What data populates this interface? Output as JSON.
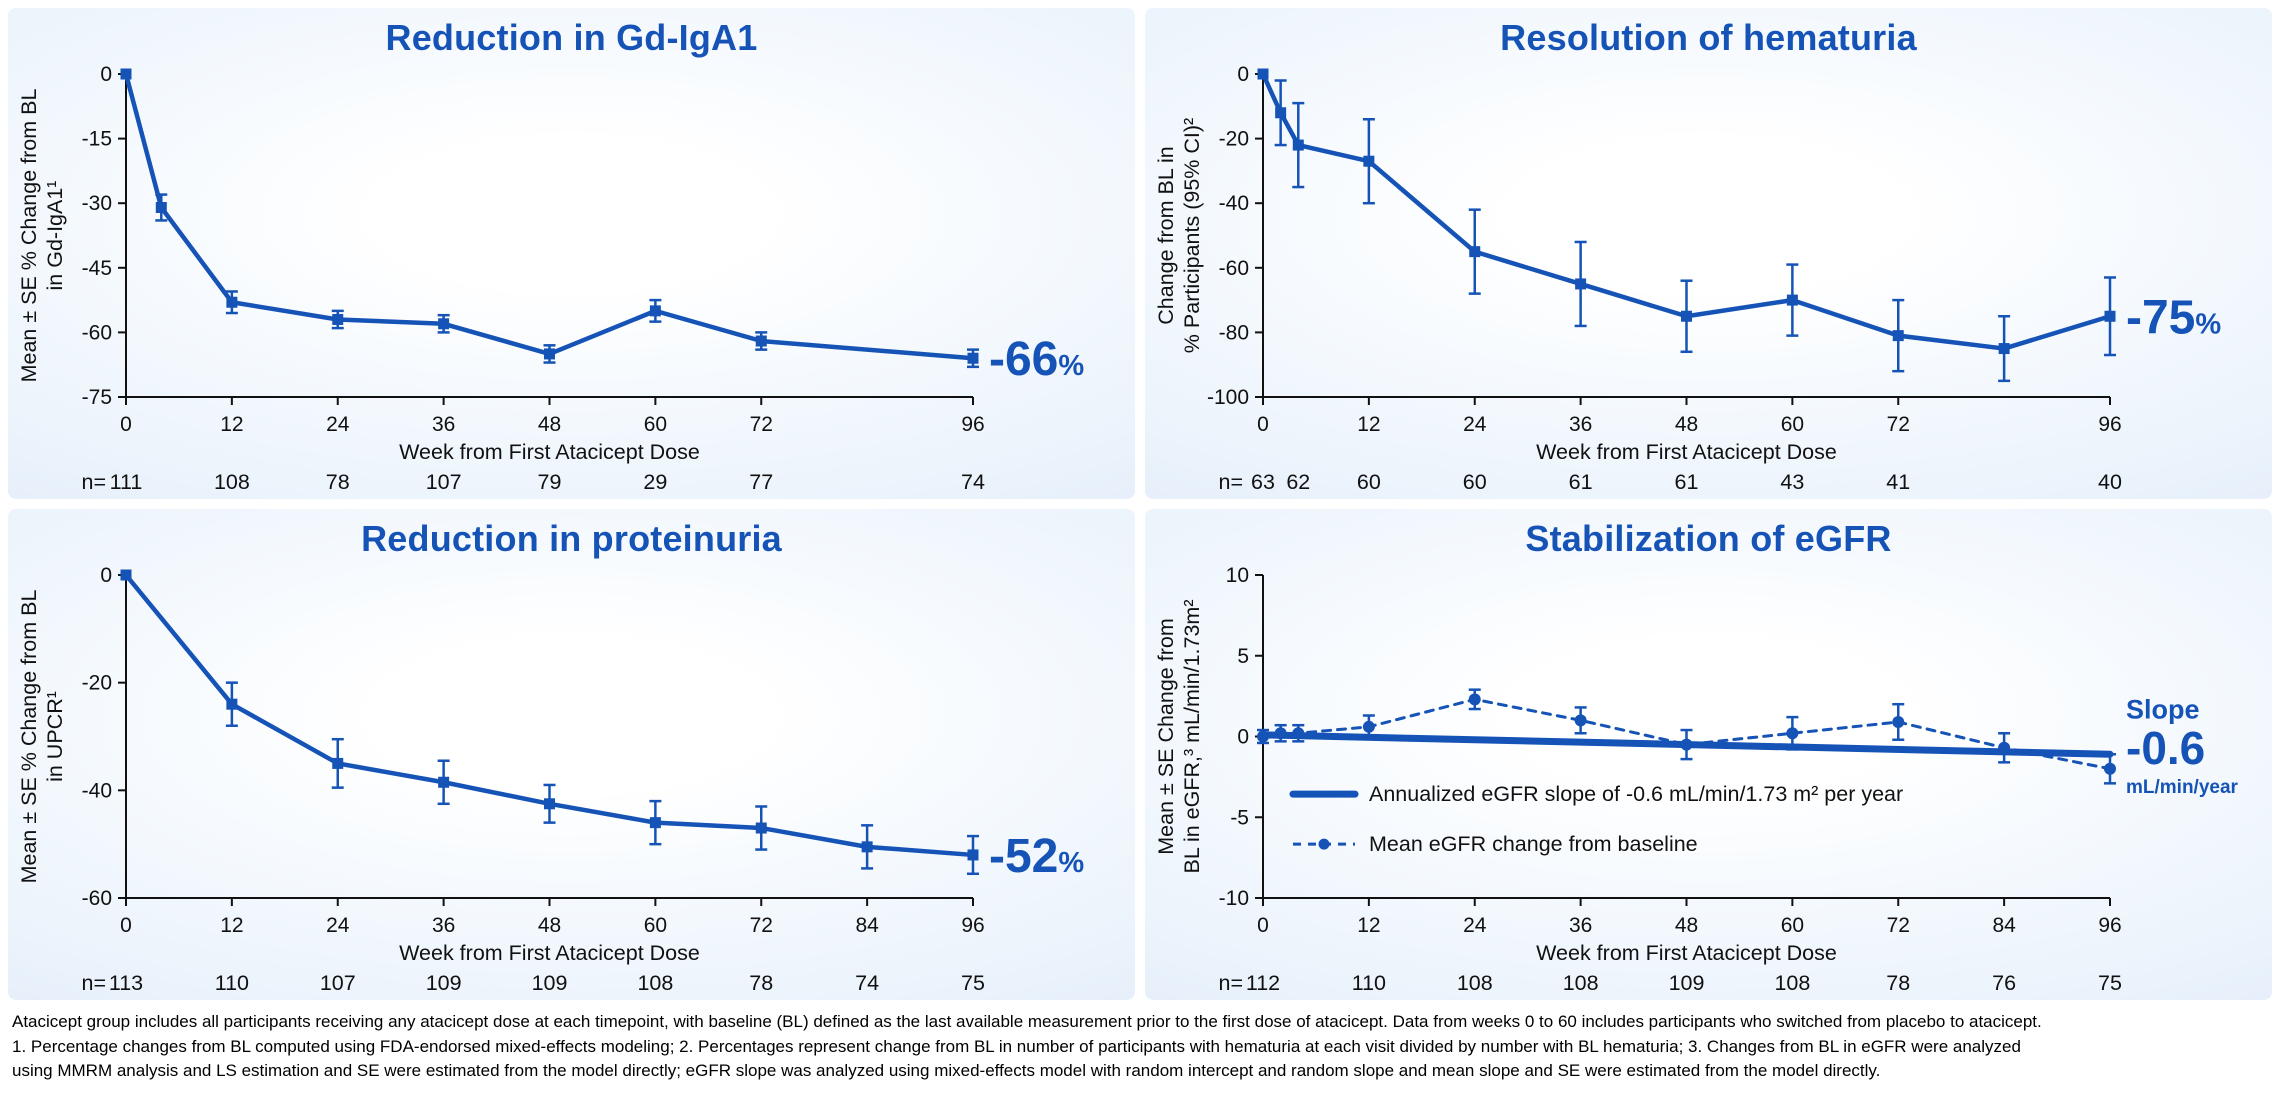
{
  "colors": {
    "accent": "#1553b6",
    "axis": "#111111",
    "text": "#111111",
    "panel_bg": "#e2edf9"
  },
  "footer": {
    "lines": [
      "Atacicept group includes all participants receiving any atacicept dose at each timepoint, with baseline (BL) defined as the last available measurement prior to the first dose of atacicept. Data from weeks 0 to 60 includes participants who switched from placebo to atacicept.",
      "1. Percentage changes from BL computed using FDA-endorsed mixed-effects modeling; 2. Percentages represent change from BL in number of participants with hematuria at each visit divided by number with BL hematuria; 3. Changes from BL in eGFR were analyzed",
      "using MMRM analysis and LS estimation and SE were estimated from the model directly; eGFR slope was analyzed using mixed-effects model with random intercept and random slope and mean slope and SE were estimated from the model directly."
    ]
  },
  "chart_data": [
    {
      "type": "line",
      "title": "Reduction in Gd-IgA1",
      "xlabel": "Week from First Atacicept Dose",
      "ylabel_lines": [
        "Mean ± SE % Change from BL",
        "in Gd-IgA1¹"
      ],
      "xlim": [
        0,
        96
      ],
      "ylim": [
        -75,
        0
      ],
      "yticks": [
        0,
        -15,
        -30,
        -45,
        -60,
        -75
      ],
      "xticks": [
        0,
        12,
        24,
        36,
        48,
        60,
        72,
        96
      ],
      "series": [
        {
          "name": "Mean % change from BL in Gd-IgA1",
          "style": "solid",
          "marker": "square",
          "x": [
            0,
            4,
            12,
            24,
            36,
            48,
            60,
            72,
            96
          ],
          "y": [
            0,
            -31,
            -53,
            -57,
            -58,
            -65,
            -55,
            -62,
            -66
          ],
          "err": [
            0,
            3,
            2.5,
            2,
            2,
            2,
            2.5,
            2,
            2
          ]
        }
      ],
      "annotation": {
        "value": "-66",
        "unit": "%"
      },
      "n_row": {
        "label": "n=",
        "weeks": [
          0,
          12,
          24,
          36,
          48,
          60,
          72,
          96
        ],
        "values": [
          "111",
          "108",
          "78",
          "107",
          "79",
          "29",
          "77",
          "74"
        ]
      }
    },
    {
      "type": "line",
      "title": "Resolution of hematuria",
      "xlabel": "Week from First Atacicept Dose",
      "ylabel_lines": [
        "Change from BL in",
        "% Participants (95% CI)²"
      ],
      "xlim": [
        0,
        96
      ],
      "ylim": [
        -100,
        0
      ],
      "yticks": [
        0,
        -20,
        -40,
        -60,
        -80,
        -100
      ],
      "xticks": [
        0,
        12,
        24,
        36,
        48,
        60,
        72,
        96
      ],
      "series": [
        {
          "name": "Change from BL in % participants with hematuria",
          "style": "solid",
          "marker": "square",
          "x": [
            0,
            2,
            4,
            12,
            24,
            36,
            48,
            60,
            72,
            84,
            96
          ],
          "y": [
            0,
            -12,
            -22,
            -27,
            -55,
            -65,
            -75,
            -70,
            -81,
            -85,
            -75
          ],
          "err": [
            0,
            10,
            13,
            13,
            13,
            13,
            11,
            11,
            11,
            10,
            12
          ]
        }
      ],
      "annotation": {
        "value": "-75",
        "unit": "%"
      },
      "n_row": {
        "label": "n=",
        "weeks": [
          0,
          4,
          12,
          24,
          36,
          48,
          60,
          72,
          96
        ],
        "values": [
          "63",
          "62",
          "60",
          "60",
          "61",
          "61",
          "43",
          "41",
          "40"
        ]
      }
    },
    {
      "type": "line",
      "title": "Reduction in proteinuria",
      "xlabel": "Week from First Atacicept Dose",
      "ylabel_lines": [
        "Mean ± SE % Change from BL",
        "in UPCR¹"
      ],
      "xlim": [
        0,
        96
      ],
      "ylim": [
        -60,
        0
      ],
      "yticks": [
        0,
        -20,
        -40,
        -60
      ],
      "xticks": [
        0,
        12,
        24,
        36,
        48,
        60,
        72,
        84,
        96
      ],
      "series": [
        {
          "name": "Mean % change from BL in UPCR",
          "style": "solid",
          "marker": "square",
          "x": [
            0,
            12,
            24,
            36,
            48,
            60,
            72,
            84,
            96
          ],
          "y": [
            0,
            -24,
            -35,
            -38.5,
            -42.5,
            -46,
            -47,
            -50.5,
            -52
          ],
          "err": [
            0,
            4,
            4.5,
            4,
            3.5,
            4,
            4,
            4,
            3.5
          ]
        }
      ],
      "annotation": {
        "value": "-52",
        "unit": "%"
      },
      "n_row": {
        "label": "n=",
        "weeks": [
          0,
          12,
          24,
          36,
          48,
          60,
          72,
          84,
          96
        ],
        "values": [
          "113",
          "110",
          "107",
          "109",
          "109",
          "108",
          "78",
          "74",
          "75"
        ]
      }
    },
    {
      "type": "line",
      "title": "Stabilization of eGFR",
      "xlabel": "Week from First Atacicept Dose",
      "ylabel_lines": [
        "Mean ± SE Change from",
        "BL in eGFR,³ mL/min/1.73m²"
      ],
      "xlim": [
        0,
        96
      ],
      "ylim": [
        -10,
        10
      ],
      "yticks": [
        10,
        5,
        0,
        -5,
        -10
      ],
      "xticks": [
        0,
        12,
        24,
        36,
        48,
        60,
        72,
        84,
        96
      ],
      "series": [
        {
          "name": "Annualized eGFR slope of -0.6 mL/min/1.73 m² per year",
          "style": "trend",
          "x": [
            0,
            96
          ],
          "y": [
            0.1,
            -1.1
          ]
        },
        {
          "name": "Mean eGFR change from baseline",
          "style": "dashed",
          "marker": "circle",
          "x": [
            0,
            2,
            4,
            12,
            24,
            36,
            48,
            60,
            72,
            84,
            96
          ],
          "y": [
            0,
            0.2,
            0.2,
            0.6,
            2.3,
            1.0,
            -0.5,
            0.2,
            0.9,
            -0.7,
            -2.0
          ],
          "err": [
            0.4,
            0.5,
            0.5,
            0.7,
            0.6,
            0.8,
            0.9,
            1.0,
            1.1,
            0.9,
            0.9
          ]
        }
      ],
      "legend": [
        {
          "style": "trend",
          "label": "Annualized eGFR slope of -0.6 mL/min/1.73 m² per year"
        },
        {
          "style": "dashed",
          "label": "Mean eGFR change from baseline"
        }
      ],
      "slope_note": {
        "label": "Slope",
        "value": "-0.6",
        "unit": "mL/min/year"
      },
      "n_row": {
        "label": "n=",
        "weeks": [
          0,
          12,
          24,
          36,
          48,
          60,
          72,
          84,
          96
        ],
        "values": [
          "112",
          "110",
          "108",
          "108",
          "109",
          "108",
          "78",
          "76",
          "75"
        ]
      }
    }
  ]
}
